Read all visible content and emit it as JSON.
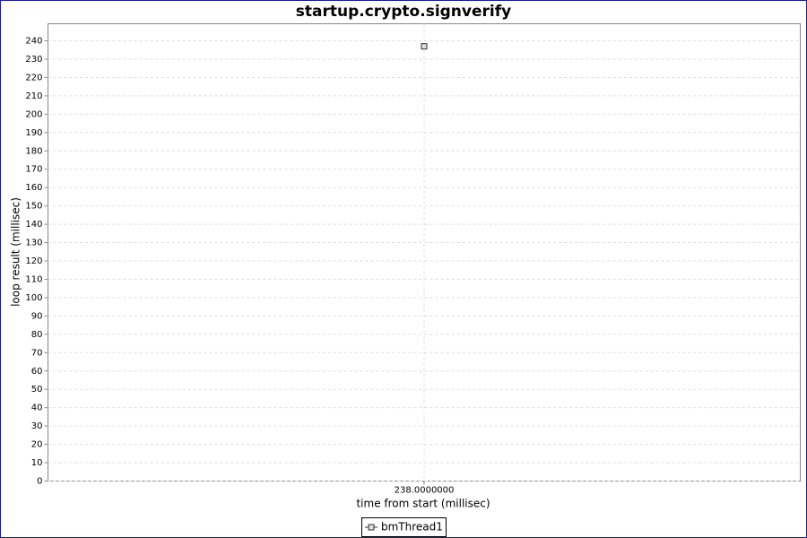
{
  "chart_data": {
    "type": "line",
    "title": "startup.crypto.signverify",
    "x_label": "time from start (millisec)",
    "y_label": "loop result (millisec)",
    "x": [
      238
    ],
    "series": [
      {
        "name": "bmThread1",
        "color": "#333333",
        "values": [
          237
        ]
      }
    ],
    "xlim": [
      237.5,
      238.5
    ],
    "xticks": [
      {
        "value": 238,
        "label": "238.0000000"
      }
    ],
    "ylim": [
      0,
      249.3
    ],
    "yticks": [
      0,
      10,
      20,
      30,
      40,
      50,
      60,
      70,
      80,
      90,
      100,
      110,
      120,
      130,
      140,
      150,
      160,
      170,
      180,
      190,
      200,
      210,
      220,
      230,
      240
    ],
    "grid": true,
    "legend": "bottom"
  }
}
